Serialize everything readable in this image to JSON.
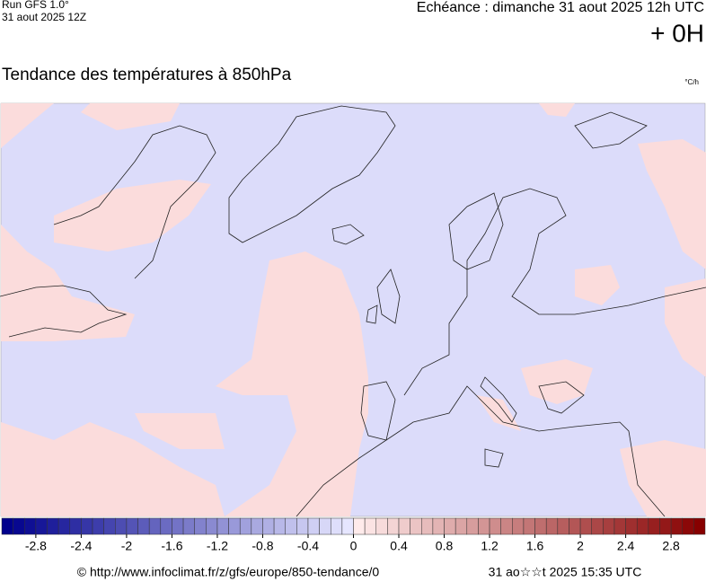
{
  "header": {
    "run": "Run GFS 1.0°",
    "run_date": "31 aout 2025 12Z",
    "valid": "Echéance : dimanche 31 aout 2025 12h UTC",
    "offset": "+ 0H"
  },
  "map": {
    "title": "Tendance des températures à 850hPa",
    "unit": "°C/h"
  },
  "colorbar": {
    "range": [
      -3.1,
      3.1
    ],
    "ticks": [
      -2.8,
      -2.4,
      -2,
      -1.6,
      -1.2,
      -0.8,
      -0.4,
      0,
      0.4,
      0.8,
      1.2,
      1.6,
      2,
      2.4,
      2.8
    ]
  },
  "footer": {
    "source": "© http://www.infoclimat.fr/z/gfs/europe/850-tendance/0",
    "generated": "31 ao☆☆t 2025 15:35 UTC"
  }
}
